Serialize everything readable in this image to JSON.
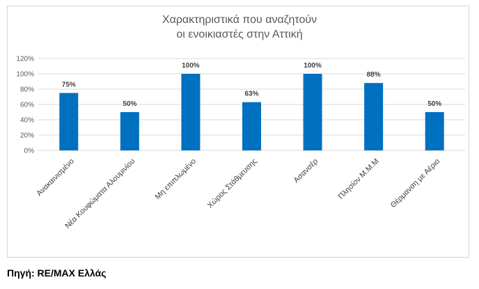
{
  "source": "Πηγή: RE/MAX Ελλάς",
  "chart_data": {
    "type": "bar",
    "title_line1": "Χαρακτηριστικά που αναζητούν",
    "title_line2": "οι ενοικιαστές στην Αττική",
    "categories": [
      "Ανακαινισμένο",
      "Νέα Κουφώματα Αλουμινίου",
      "Μη επιπλωμένο",
      "Χώρος Στάθμευσης",
      "Ασανσέρ",
      "Πλησίον Μ.Μ.Μ",
      "Θέρμανση με Αέριο"
    ],
    "values": [
      75,
      50,
      100,
      63,
      100,
      88,
      50
    ],
    "data_labels": [
      "75%",
      "50%",
      "100%",
      "63%",
      "100%",
      "88%",
      "50%"
    ],
    "ylim": [
      0,
      120
    ],
    "yticks": [
      0,
      20,
      40,
      60,
      80,
      100,
      120
    ],
    "ytick_labels": [
      "0%",
      "20%",
      "40%",
      "60%",
      "80%",
      "100%",
      "120%"
    ],
    "grid": true,
    "bar_color": "#0070c0",
    "grid_color": "#d9d9d9"
  }
}
